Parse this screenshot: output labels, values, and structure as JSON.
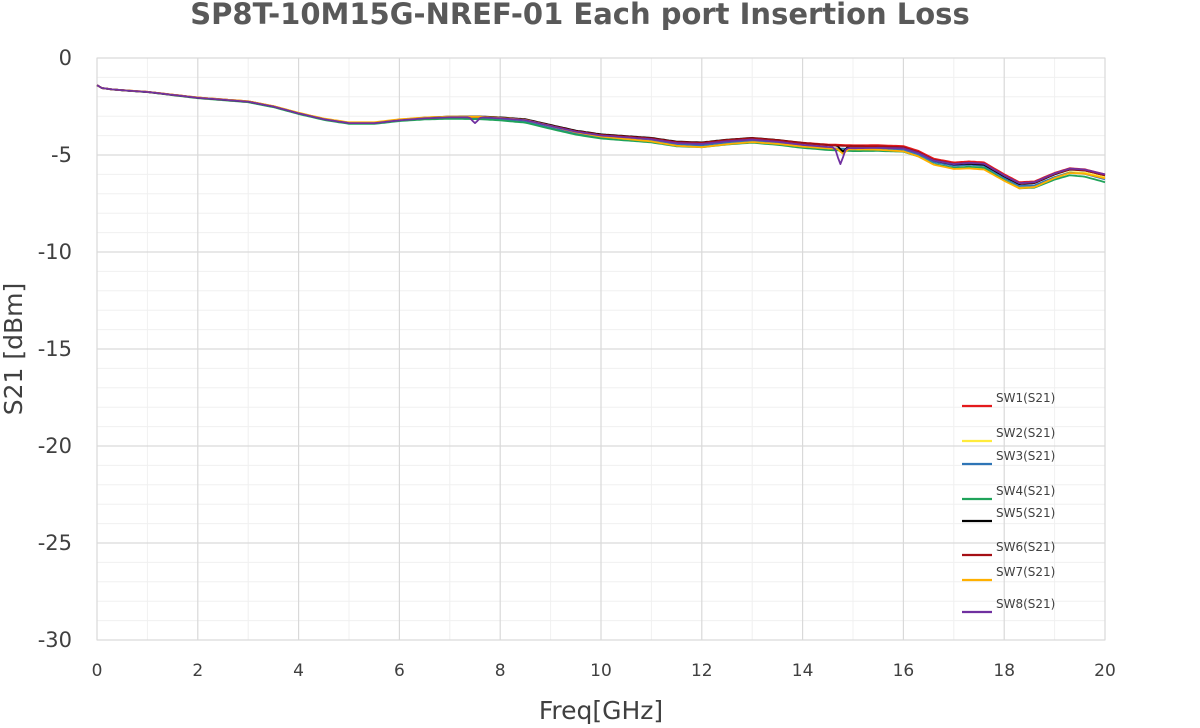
{
  "chart_data": {
    "type": "line",
    "title": "SP8T-10M15G-NREF-01 Each port Insertion Loss",
    "xlabel": "Freq[GHz]",
    "ylabel": "S21  [dBm]",
    "xlim": [
      0,
      20
    ],
    "ylim": [
      -30,
      0
    ],
    "x_ticks": [
      "0",
      "2",
      "4",
      "6",
      "8",
      "10",
      "12",
      "14",
      "16",
      "18",
      "20"
    ],
    "y_ticks": [
      "0",
      "-5",
      "-10",
      "-15",
      "-20",
      "-25",
      "-30"
    ],
    "grid": true,
    "legend_position": "bottom-right",
    "base_curve": {
      "x": [
        0,
        0.1,
        0.3,
        0.6,
        1.0,
        1.5,
        2.0,
        2.5,
        3.0,
        3.5,
        4.0,
        4.5,
        5.0,
        5.5,
        6.0,
        6.5,
        7.0,
        7.4,
        7.6,
        8.0,
        8.5,
        9.0,
        9.5,
        10.0,
        10.5,
        11.0,
        11.5,
        12.0,
        12.5,
        13.0,
        13.5,
        14.0,
        14.5,
        15.0,
        15.5,
        16.0,
        16.3,
        16.6,
        17.0,
        17.3,
        17.6,
        18.0,
        18.3,
        18.6,
        19.0,
        19.3,
        19.6,
        20.0
      ],
      "y": [
        -1.4,
        -1.55,
        -1.62,
        -1.68,
        -1.75,
        -1.9,
        -2.05,
        -2.15,
        -2.25,
        -2.5,
        -2.85,
        -3.15,
        -3.35,
        -3.35,
        -3.2,
        -3.1,
        -3.05,
        -3.05,
        -3.05,
        -3.1,
        -3.2,
        -3.5,
        -3.8,
        -4.0,
        -4.1,
        -4.2,
        -4.4,
        -4.45,
        -4.3,
        -4.2,
        -4.3,
        -4.45,
        -4.55,
        -4.6,
        -4.6,
        -4.65,
        -4.9,
        -5.3,
        -5.5,
        -5.45,
        -5.5,
        -6.1,
        -6.5,
        -6.45,
        -6.0,
        -5.75,
        -5.8,
        -6.05
      ]
    },
    "series": [
      {
        "name": "SW1(S21)",
        "color": "#e41a1c",
        "offset": [
          0,
          0.02,
          0,
          0,
          0.05,
          0.1,
          0.12,
          0.05
        ],
        "features": []
      },
      {
        "name": "SW2(S21)",
        "color": "#ffeb3b",
        "offset": [
          0,
          -0.02,
          0.03,
          -0.05,
          -0.1,
          -0.15,
          -0.2,
          -0.1
        ],
        "features": []
      },
      {
        "name": "SW3(S21)",
        "color": "#2e75b6",
        "offset": [
          0,
          -0.01,
          -0.02,
          -0.1,
          -0.05,
          -0.1,
          -0.05,
          -0.2
        ],
        "features": []
      },
      {
        "name": "SW4(S21)",
        "color": "#1fa35a",
        "offset": [
          0,
          -0.03,
          -0.05,
          -0.15,
          -0.15,
          -0.2,
          -0.15,
          -0.35
        ],
        "features": []
      },
      {
        "name": "SW5(S21)",
        "color": "#000000",
        "offset": [
          0,
          0,
          0.02,
          0.05,
          0.1,
          0.05,
          0.0,
          0.0
        ],
        "features": [
          {
            "x": 14.8,
            "depth": -0.3
          }
        ]
      },
      {
        "name": "SW6(S21)",
        "color": "#a50f15",
        "offset": [
          0,
          0.01,
          0.0,
          0.02,
          0.08,
          0.05,
          0.05,
          0.0
        ],
        "features": []
      },
      {
        "name": "SW7(S21)",
        "color": "#ffb000",
        "offset": [
          0,
          0.02,
          0.04,
          0.0,
          -0.15,
          -0.1,
          -0.25,
          -0.15
        ],
        "features": [
          {
            "x": 14.8,
            "depth": -0.25
          }
        ]
      },
      {
        "name": "SW8(S21)",
        "color": "#7030a0",
        "offset": [
          0,
          0.0,
          -0.01,
          0.0,
          0.02,
          -0.05,
          0.05,
          0.05
        ],
        "features": [
          {
            "x": 7.5,
            "depth": -0.3
          },
          {
            "x": 14.75,
            "depth": -0.85
          }
        ]
      }
    ]
  }
}
